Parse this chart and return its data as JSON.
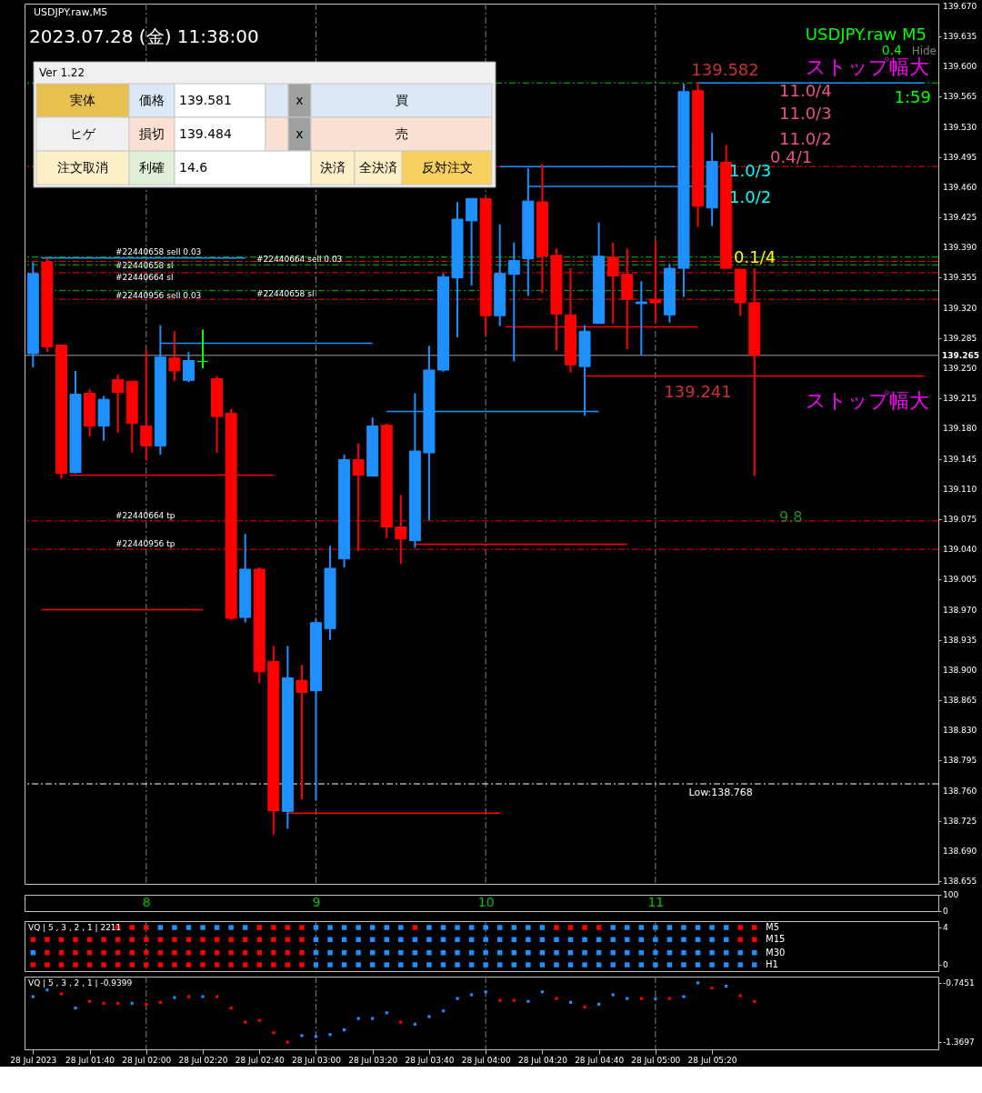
{
  "chart_data": [
    {
      "type": "candlestick",
      "title": "USDJPY.raw,M5",
      "x": [
        "2023-07-28T01:20",
        "2023-07-28T01:25",
        "2023-07-28T01:30",
        "2023-07-28T01:35",
        "2023-07-28T01:40",
        "2023-07-28T01:45",
        "2023-07-28T01:50",
        "2023-07-28T01:55",
        "2023-07-28T02:00",
        "2023-07-28T02:05",
        "2023-07-28T02:10",
        "2023-07-28T02:15",
        "2023-07-28T02:20",
        "2023-07-28T02:25",
        "2023-07-28T02:30",
        "2023-07-28T02:35",
        "2023-07-28T02:40",
        "2023-07-28T02:45",
        "2023-07-28T02:50",
        "2023-07-28T02:55",
        "2023-07-28T03:00",
        "2023-07-28T03:05",
        "2023-07-28T03:10",
        "2023-07-28T03:15",
        "2023-07-28T03:20",
        "2023-07-28T03:25",
        "2023-07-28T03:30",
        "2023-07-28T03:35",
        "2023-07-28T03:40",
        "2023-07-28T03:45",
        "2023-07-28T03:50",
        "2023-07-28T03:55",
        "2023-07-28T04:00",
        "2023-07-28T04:05",
        "2023-07-28T04:10",
        "2023-07-28T04:15",
        "2023-07-28T04:20",
        "2023-07-28T04:25",
        "2023-07-28T04:30",
        "2023-07-28T04:35",
        "2023-07-28T04:40",
        "2023-07-28T04:45",
        "2023-07-28T04:50",
        "2023-07-28T04:55",
        "2023-07-28T05:00",
        "2023-07-28T05:05",
        "2023-07-28T05:10",
        "2023-07-28T05:15",
        "2023-07-28T05:20",
        "2023-07-28T05:25",
        "2023-07-28T05:30",
        "2023-07-28T05:35"
      ],
      "ohlc": [
        [
          139.267,
          139.373,
          139.251,
          139.36
        ],
        [
          139.373,
          139.378,
          139.269,
          139.275
        ],
        [
          139.277,
          139.277,
          139.122,
          139.128
        ],
        [
          139.129,
          139.247,
          139.128,
          139.22
        ],
        [
          139.221,
          139.226,
          139.171,
          139.183
        ],
        [
          139.183,
          139.218,
          139.166,
          139.214
        ],
        [
          139.237,
          139.243,
          139.175,
          139.222
        ],
        [
          139.235,
          139.235,
          139.152,
          139.186
        ],
        [
          139.183,
          139.271,
          139.143,
          139.16
        ],
        [
          139.16,
          139.3,
          139.15,
          139.263
        ],
        [
          139.262,
          139.293,
          139.235,
          139.247
        ],
        [
          139.236,
          139.269,
          139.234,
          139.259
        ],
        [
          139.258,
          139.295,
          139.25,
          139.258
        ],
        [
          139.238,
          139.241,
          139.152,
          139.194
        ],
        [
          139.198,
          139.203,
          138.958,
          138.96
        ],
        [
          138.961,
          139.058,
          138.955,
          139.017
        ],
        [
          139.017,
          139.019,
          138.885,
          138.898
        ],
        [
          138.91,
          138.928,
          138.709,
          138.737
        ],
        [
          138.736,
          138.928,
          138.716,
          138.891
        ],
        [
          138.888,
          138.906,
          138.75,
          138.874
        ],
        [
          138.876,
          138.959,
          138.749,
          138.955
        ],
        [
          138.948,
          139.044,
          138.935,
          139.018
        ],
        [
          139.029,
          139.15,
          139.019,
          139.144
        ],
        [
          139.144,
          139.163,
          139.038,
          139.126
        ],
        [
          139.125,
          139.193,
          139.125,
          139.183
        ],
        [
          139.184,
          139.186,
          139.053,
          139.066
        ],
        [
          139.066,
          139.103,
          139.023,
          139.052
        ],
        [
          139.05,
          139.221,
          139.042,
          139.154
        ],
        [
          139.152,
          139.276,
          139.074,
          139.248
        ],
        [
          139.248,
          139.36,
          139.246,
          139.356
        ],
        [
          139.355,
          139.443,
          139.286,
          139.423
        ],
        [
          139.421,
          139.447,
          139.346,
          139.447
        ],
        [
          139.447,
          139.447,
          139.289,
          139.311
        ],
        [
          139.311,
          139.417,
          139.299,
          139.36
        ],
        [
          139.359,
          139.396,
          139.258,
          139.375
        ],
        [
          139.377,
          139.482,
          139.334,
          139.444
        ],
        [
          139.443,
          139.487,
          139.337,
          139.38
        ],
        [
          139.381,
          139.389,
          139.271,
          139.313
        ],
        [
          139.312,
          139.366,
          139.245,
          139.254
        ],
        [
          139.252,
          139.3,
          139.195,
          139.293
        ],
        [
          139.302,
          139.419,
          139.302,
          139.38
        ],
        [
          139.379,
          139.396,
          139.302,
          139.357
        ],
        [
          139.359,
          139.389,
          139.272,
          139.33
        ],
        [
          139.325,
          139.351,
          139.265,
          139.327
        ],
        [
          139.33,
          139.397,
          139.303,
          139.326
        ],
        [
          139.312,
          139.371,
          139.303,
          139.366
        ],
        [
          139.366,
          139.58,
          139.333,
          139.571
        ],
        [
          139.572,
          139.582,
          139.414,
          139.438
        ],
        [
          139.436,
          139.523,
          139.415,
          139.49
        ],
        [
          139.489,
          139.509,
          139.366,
          139.366
        ],
        [
          139.365,
          139.365,
          139.311,
          139.326
        ],
        [
          139.326,
          139.366,
          139.125,
          139.265
        ]
      ],
      "colors": [
        "#1e90ff",
        "#ff0000",
        "#ff0000",
        "#1e90ff",
        "#ff0000",
        "#1e90ff",
        "#ff0000",
        "#ff0000",
        "#ff0000",
        "#1e90ff",
        "#ff0000",
        "#1e90ff",
        "#00ff00",
        "#ff0000",
        "#ff0000",
        "#1e90ff",
        "#ff0000",
        "#ff0000",
        "#1e90ff",
        "#ff0000",
        "#1e90ff",
        "#1e90ff",
        "#1e90ff",
        "#ff0000",
        "#1e90ff",
        "#ff0000",
        "#ff0000",
        "#1e90ff",
        "#1e90ff",
        "#1e90ff",
        "#1e90ff",
        "#1e90ff",
        "#ff0000",
        "#1e90ff",
        "#1e90ff",
        "#1e90ff",
        "#ff0000",
        "#ff0000",
        "#ff0000",
        "#1e90ff",
        "#1e90ff",
        "#ff0000",
        "#ff0000",
        "#1e90ff",
        "#ff0000",
        "#1e90ff",
        "#1e90ff",
        "#ff0000",
        "#1e90ff",
        "#ff0000",
        "#ff0000",
        "#ff0000"
      ],
      "xlim": [
        "2023-07-28T01:17",
        "2023-07-28T06:40"
      ],
      "ylim": [
        138.652,
        139.673
      ],
      "yticks": [
        138.655,
        {
          "value": 138.69,
          "label": "138.690"
        },
        138.725,
        {
          "value": 138.76,
          "label": "138.760"
        },
        138.795,
        {
          "value": 138.83,
          "label": "138.830"
        },
        138.865,
        {
          "value": 138.9,
          "label": "138.900"
        },
        138.935,
        {
          "value": 138.97,
          "label": "138.970"
        },
        139.005,
        {
          "value": 139.04,
          "label": "139.040"
        },
        139.075,
        {
          "value": 139.11,
          "label": "139.110"
        },
        139.145,
        {
          "value": 139.18,
          "label": "139.180"
        },
        139.215,
        {
          "value": 139.25,
          "label": "139.250"
        },
        139.285,
        {
          "value": 139.32,
          "label": "139.320"
        },
        139.355,
        {
          "value": 139.39,
          "label": "139.390"
        },
        139.425,
        {
          "value": 139.46,
          "label": "139.460"
        },
        139.495,
        {
          "value": 139.53,
          "label": "139.530"
        },
        139.565,
        {
          "value": 139.6,
          "label": "139.600"
        },
        139.635,
        {
          "value": 139.67,
          "label": "139.670"
        }
      ],
      "tick_labels": "y",
      "series": [
        {
          "type": "line",
          "color": "#1e90ff",
          "x": [
            "2023-07-28T05:15",
            "2023-07-28T06:35"
          ],
          "values": [
            139.581,
            139.581
          ]
        },
        {
          "type": "line",
          "color": "#1e90ff",
          "x": [
            "2023-07-28T04:05",
            "2023-07-28T05:07"
          ],
          "values": [
            139.484,
            139.484
          ]
        },
        {
          "type": "line",
          "color": "#1e90ff",
          "x": [
            "2023-07-28T04:15",
            "2023-07-28T05:22"
          ],
          "values": [
            139.461,
            139.461
          ]
        },
        {
          "type": "line",
          "color": "#1e90ff",
          "x": [
            "2023-07-28T01:23",
            "2023-07-28T02:35"
          ],
          "values": [
            139.378,
            139.378
          ]
        },
        {
          "type": "line",
          "color": "#1e90ff",
          "x": [
            "2023-07-28T02:05",
            "2023-07-28T03:20"
          ],
          "values": [
            139.279,
            139.279
          ]
        },
        {
          "type": "line",
          "color": "#1e90ff",
          "x": [
            "2023-07-28T03:25",
            "2023-07-28T04:40"
          ],
          "values": [
            139.2,
            139.2
          ]
        },
        {
          "type": "line",
          "color": "#ff0000",
          "x": [
            "2023-07-28T04:07",
            "2023-07-28T05:15"
          ],
          "values": [
            139.298,
            139.298
          ]
        },
        {
          "type": "line",
          "color": "#ff0000",
          "x": [
            "2023-07-28T01:33",
            "2023-07-28T02:45"
          ],
          "values": [
            139.126,
            139.126
          ]
        },
        {
          "type": "line",
          "color": "#ff0000",
          "x": [
            "2023-07-28T03:35",
            "2023-07-28T04:50"
          ],
          "values": [
            139.046,
            139.046
          ]
        },
        {
          "type": "line",
          "color": "#ff0000",
          "x": [
            "2023-07-28T01:23",
            "2023-07-28T02:20"
          ],
          "values": [
            138.97,
            138.97
          ]
        },
        {
          "type": "line",
          "color": "#ff0000",
          "x": [
            "2023-07-28T02:50",
            "2023-07-28T04:05"
          ],
          "values": [
            138.734,
            138.734
          ]
        },
        {
          "type": "line",
          "color": "#ff0000",
          "x": [
            "2023-07-28T04:35",
            "2023-07-28T06:35"
          ],
          "values": [
            139.241,
            139.241
          ]
        }
      ],
      "ref_lines": [
        {
          "axis": "x",
          "value": "2023-07-28T02:00",
          "color": "#808080",
          "line_style": "dashed"
        },
        {
          "axis": "x",
          "value": "2023-07-28T03:00",
          "color": "#808080",
          "line_style": "dashed"
        },
        {
          "axis": "x",
          "value": "2023-07-28T04:00",
          "color": "#808080",
          "line_style": "dashed"
        },
        {
          "axis": "x",
          "value": "2023-07-28T05:00",
          "color": "#808080",
          "line_style": "dashed"
        },
        {
          "axis": "y",
          "value": 139.581,
          "color": "#00c000",
          "line_style": "dashed"
        },
        {
          "axis": "y",
          "value": 139.484,
          "color": "#ff0000",
          "line_style": "dashed"
        },
        {
          "axis": "y",
          "value": 139.379,
          "color": "#00c000",
          "line_style": "dashed",
          "label": "#22440658 sell 0.03"
        },
        {
          "axis": "y",
          "value": 139.374,
          "color": "#ff0000",
          "line_style": "dashed",
          "label": "#22440658 sl"
        },
        {
          "axis": "y",
          "value": 139.37,
          "color": "#00c000",
          "line_style": "dashed",
          "label": "#22440664 sell 0.03"
        },
        {
          "axis": "y",
          "value": 139.361,
          "color": "#ff0000",
          "line_style": "dashed",
          "label": "#22440664 sl"
        },
        {
          "axis": "y",
          "value": 139.34,
          "color": "#00c000",
          "line_style": "dashed",
          "label": "#22440956 sell 0.03"
        },
        {
          "axis": "y",
          "value": 139.33,
          "color": "#ff0000",
          "line_style": "dashed",
          "label": "#22440658 sl"
        },
        {
          "axis": "y",
          "value": 139.073,
          "color": "#ff0000",
          "line_style": "dashed",
          "label": "#22440664 tp"
        },
        {
          "axis": "y",
          "value": 139.04,
          "color": "#ff0000",
          "line_style": "dashed",
          "label": "#22440956 tp"
        },
        {
          "axis": "y",
          "value": 138.768,
          "color": "#ffffff",
          "line_style": "dashed"
        },
        {
          "axis": "y",
          "value": 139.265,
          "color": "#a0a0a0",
          "line_style": "solid",
          "label": "139.265"
        }
      ],
      "annotations": [
        "2023.07.28 (金) 11:38:00",
        "USDJPY.raw  M5",
        "Hide",
        "ストップ幅大",
        "11.0/4",
        "11.0/3",
        "11.0/2",
        "0.4/1",
        "1.0/3",
        "1.0/2",
        "0.1/4",
        "1:59",
        "0.4",
        "ストップ幅大",
        "9.8",
        {
          "text": "139.582",
          "x": "2023-07-28T05:15",
          "y": 139.582
        },
        {
          "text": "139.241",
          "x": "2023-07-28T05:15",
          "y": 139.241
        },
        {
          "text": "Low:138.768",
          "x": "2023-07-28T05:15",
          "y": 138.768
        }
      ]
    },
    {
      "type": "other",
      "title": "Ver 1.22",
      "annotations": [
        "実体",
        "価格",
        "139.581",
        "x",
        "買",
        "ヒゲ",
        "損切",
        "139.484",
        "x",
        "売",
        "注文取消",
        "利確",
        "14.6",
        "決済",
        "全決済",
        "反対注文"
      ]
    },
    {
      "type": "line",
      "xlim": [
        "2023-07-28T01:17",
        "2023-07-28T06:40"
      ],
      "ylim": [
        0,
        100
      ],
      "yticks": [
        0,
        100
      ],
      "xticks": [
        {
          "value": "2023-07-28T02:00",
          "label": "8"
        },
        {
          "value": "2023-07-28T03:00",
          "label": "9"
        },
        {
          "value": "2023-07-28T04:00",
          "label": "10"
        },
        {
          "value": "2023-07-28T05:00",
          "label": "11"
        }
      ]
    },
    {
      "type": "scatter",
      "marker": "square",
      "tick_labels": "y",
      "x": [
        "2023-07-28T01:20",
        "2023-07-28T01:25",
        "2023-07-28T01:30",
        "2023-07-28T01:35",
        "2023-07-28T01:40",
        "2023-07-28T01:45",
        "2023-07-28T01:50",
        "2023-07-28T01:55",
        "2023-07-28T02:00",
        "2023-07-28T02:05",
        "2023-07-28T02:10",
        "2023-07-28T02:15",
        "2023-07-28T02:20",
        "2023-07-28T02:25",
        "2023-07-28T02:30",
        "2023-07-28T02:35",
        "2023-07-28T02:40",
        "2023-07-28T02:45",
        "2023-07-28T02:50",
        "2023-07-28T02:55",
        "2023-07-28T03:00",
        "2023-07-28T03:05",
        "2023-07-28T03:10",
        "2023-07-28T03:15",
        "2023-07-28T03:20",
        "2023-07-28T03:25",
        "2023-07-28T03:30",
        "2023-07-28T03:35",
        "2023-07-28T03:40",
        "2023-07-28T03:45",
        "2023-07-28T03:50",
        "2023-07-28T03:55",
        "2023-07-28T04:00",
        "2023-07-28T04:05",
        "2023-07-28T04:10",
        "2023-07-28T04:15",
        "2023-07-28T04:20",
        "2023-07-28T04:25",
        "2023-07-28T04:30",
        "2023-07-28T04:35",
        "2023-07-28T04:40",
        "2023-07-28T04:45",
        "2023-07-28T04:50",
        "2023-07-28T04:55",
        "2023-07-28T05:00",
        "2023-07-28T05:05",
        "2023-07-28T05:10",
        "2023-07-28T05:15",
        "2023-07-28T05:20",
        "2023-07-28T05:25",
        "2023-07-28T05:30",
        "2023-07-28T05:35"
      ],
      "xlim": [
        "2023-07-28T01:17",
        "2023-07-28T06:40"
      ],
      "ylim": [
        -0.68,
        4.68
      ],
      "yticks": [
        0,
        4
      ],
      "series": [
        {
          "name": "M5",
          "values": [
            null,
            null,
            null,
            null,
            null,
            null,
            4,
            4,
            4,
            4,
            4,
            4,
            4,
            4,
            4,
            4,
            4,
            4,
            4,
            4,
            4,
            4,
            4,
            4,
            4,
            4,
            4,
            4,
            4,
            4,
            4,
            4,
            4,
            4,
            4,
            4,
            4,
            4,
            4,
            4,
            4,
            4,
            4,
            4,
            4,
            4,
            4,
            4,
            4,
            4,
            4,
            4
          ],
          "colors": [
            null,
            null,
            null,
            null,
            null,
            null,
            "#ff0000",
            "#ff0000",
            "#ff0000",
            "#1e90ff",
            "#1e90ff",
            "#1e90ff",
            "#1e90ff",
            "#1e90ff",
            "#1e90ff",
            "#1e90ff",
            "#ff0000",
            "#ff0000",
            "#ff0000",
            "#ff0000",
            "#1e90ff",
            "#1e90ff",
            "#1e90ff",
            "#1e90ff",
            "#1e90ff",
            "#1e90ff",
            "#1e90ff",
            "#ff0000",
            "#1e90ff",
            "#1e90ff",
            "#1e90ff",
            "#1e90ff",
            "#1e90ff",
            "#1e90ff",
            "#1e90ff",
            "#1e90ff",
            "#1e90ff",
            "#ff0000",
            "#ff0000",
            "#ff0000",
            "#ff0000",
            "#1e90ff",
            "#1e90ff",
            "#1e90ff",
            "#1e90ff",
            "#1e90ff",
            "#1e90ff",
            "#1e90ff",
            "#1e90ff",
            "#1e90ff",
            "#ff0000",
            "#ff0000"
          ]
        },
        {
          "name": "M15",
          "values": [
            2.7,
            2.7,
            2.7,
            2.7,
            2.7,
            2.7,
            2.7,
            2.7,
            2.7,
            2.7,
            2.7,
            2.7,
            2.7,
            2.7,
            2.7,
            2.7,
            2.7,
            2.7,
            2.7,
            2.7,
            2.7,
            2.7,
            2.7,
            2.7,
            2.7,
            2.7,
            2.7,
            2.7,
            2.7,
            2.7,
            2.7,
            2.7,
            2.7,
            2.7,
            2.7,
            2.7,
            2.7,
            2.7,
            2.7,
            2.7,
            2.7,
            2.7,
            2.7,
            2.7,
            2.7,
            2.7,
            2.7,
            2.7,
            2.7,
            2.7,
            2.7,
            2.7
          ],
          "colors": [
            "#ff0000",
            "#ff0000",
            "#ff0000",
            "#ff0000",
            "#ff0000",
            "#ff0000",
            "#ff0000",
            "#ff0000",
            "#ff0000",
            "#ff0000",
            "#ff0000",
            "#ff0000",
            "#ff0000",
            "#ff0000",
            "#ff0000",
            "#ff0000",
            "#ff0000",
            "#ff0000",
            "#ff0000",
            "#ff0000",
            "#1e90ff",
            "#1e90ff",
            "#1e90ff",
            "#1e90ff",
            "#1e90ff",
            "#1e90ff",
            "#1e90ff",
            "#1e90ff",
            "#1e90ff",
            "#1e90ff",
            "#1e90ff",
            "#1e90ff",
            "#1e90ff",
            "#1e90ff",
            "#1e90ff",
            "#1e90ff",
            "#1e90ff",
            "#1e90ff",
            "#1e90ff",
            "#1e90ff",
            "#1e90ff",
            "#1e90ff",
            "#1e90ff",
            "#1e90ff",
            "#1e90ff",
            "#1e90ff",
            "#1e90ff",
            "#1e90ff",
            "#1e90ff",
            "#1e90ff",
            "#ff0000",
            "#ff0000"
          ]
        },
        {
          "name": "M30",
          "values": [
            1.3,
            1.3,
            1.3,
            1.3,
            1.3,
            1.3,
            1.3,
            1.3,
            1.3,
            1.3,
            1.3,
            1.3,
            1.3,
            1.3,
            1.3,
            1.3,
            1.3,
            1.3,
            1.3,
            1.3,
            1.3,
            1.3,
            1.3,
            1.3,
            1.3,
            1.3,
            1.3,
            1.3,
            1.3,
            1.3,
            1.3,
            1.3,
            1.3,
            1.3,
            1.3,
            1.3,
            1.3,
            1.3,
            1.3,
            1.3,
            1.3,
            1.3,
            1.3,
            1.3,
            1.3,
            1.3,
            1.3,
            1.3,
            1.3,
            1.3,
            1.3,
            1.3
          ],
          "colors": [
            "#1e90ff",
            "#ff0000",
            "#ff0000",
            "#ff0000",
            "#ff0000",
            "#ff0000",
            "#ff0000",
            "#ff0000",
            "#ff0000",
            "#ff0000",
            "#ff0000",
            "#ff0000",
            "#ff0000",
            "#ff0000",
            "#ff0000",
            "#ff0000",
            "#ff0000",
            "#ff0000",
            "#ff0000",
            "#ff0000",
            "#1e90ff",
            "#1e90ff",
            "#1e90ff",
            "#1e90ff",
            "#1e90ff",
            "#1e90ff",
            "#1e90ff",
            "#1e90ff",
            "#1e90ff",
            "#1e90ff",
            "#1e90ff",
            "#1e90ff",
            "#1e90ff",
            "#1e90ff",
            "#1e90ff",
            "#1e90ff",
            "#1e90ff",
            "#1e90ff",
            "#1e90ff",
            "#1e90ff",
            "#1e90ff",
            "#1e90ff",
            "#1e90ff",
            "#1e90ff",
            "#1e90ff",
            "#1e90ff",
            "#1e90ff",
            "#1e90ff",
            "#1e90ff",
            "#1e90ff",
            "#1e90ff",
            "#1e90ff"
          ]
        },
        {
          "name": "H1",
          "values": [
            0,
            0,
            0,
            0,
            0,
            0,
            0,
            0,
            0,
            0,
            0,
            0,
            0,
            0,
            0,
            0,
            0,
            0,
            0,
            0,
            0,
            0,
            0,
            0,
            0,
            0,
            0,
            0,
            0,
            0,
            0,
            0,
            0,
            0,
            0,
            0,
            0,
            0,
            0,
            0,
            0,
            0,
            0,
            0,
            0,
            0,
            0,
            0,
            0,
            0,
            0,
            0
          ],
          "colors": [
            "#ff0000",
            "#ff0000",
            "#ff0000",
            "#ff0000",
            "#ff0000",
            "#ff0000",
            "#ff0000",
            "#ff0000",
            "#ff0000",
            "#ff0000",
            "#ff0000",
            "#ff0000",
            "#ff0000",
            "#ff0000",
            "#ff0000",
            "#ff0000",
            "#ff0000",
            "#ff0000",
            "#ff0000",
            "#ff0000",
            "#1e90ff",
            "#1e90ff",
            "#1e90ff",
            "#1e90ff",
            "#1e90ff",
            "#1e90ff",
            "#1e90ff",
            "#1e90ff",
            "#1e90ff",
            "#1e90ff",
            "#1e90ff",
            "#1e90ff",
            "#1e90ff",
            "#1e90ff",
            "#1e90ff",
            "#1e90ff",
            "#1e90ff",
            "#1e90ff",
            "#1e90ff",
            "#1e90ff",
            "#1e90ff",
            "#1e90ff",
            "#1e90ff",
            "#1e90ff",
            "#1e90ff",
            "#1e90ff",
            "#1e90ff",
            "#1e90ff",
            "#1e90ff",
            "#1e90ff",
            "#1e90ff",
            "#1e90ff"
          ]
        }
      ],
      "ref_lines": [
        {
          "axis": "x",
          "value": "2023-07-28T02:00",
          "color": "#808080",
          "line_style": "dashed"
        },
        {
          "axis": "x",
          "value": "2023-07-28T03:00",
          "color": "#808080",
          "line_style": "dashed"
        },
        {
          "axis": "x",
          "value": "2023-07-28T04:00",
          "color": "#808080",
          "line_style": "dashed"
        },
        {
          "axis": "x",
          "value": "2023-07-28T05:00",
          "color": "#808080",
          "line_style": "dashed"
        }
      ],
      "annotations": [
        "VQ | 5 , 3 , 2 , 1 | 2211"
      ]
    },
    {
      "type": "scatter",
      "marker": "square",
      "x": [
        "2023-07-28T01:20",
        "2023-07-28T01:25",
        "2023-07-28T01:30",
        "2023-07-28T01:35",
        "2023-07-28T01:40",
        "2023-07-28T01:45",
        "2023-07-28T01:50",
        "2023-07-28T01:55",
        "2023-07-28T02:00",
        "2023-07-28T02:05",
        "2023-07-28T02:10",
        "2023-07-28T02:15",
        "2023-07-28T02:20",
        "2023-07-28T02:25",
        "2023-07-28T02:30",
        "2023-07-28T02:35",
        "2023-07-28T02:40",
        "2023-07-28T02:45",
        "2023-07-28T02:50",
        "2023-07-28T02:55",
        "2023-07-28T03:00",
        "2023-07-28T03:05",
        "2023-07-28T03:10",
        "2023-07-28T03:15",
        "2023-07-28T03:20",
        "2023-07-28T03:25",
        "2023-07-28T03:30",
        "2023-07-28T03:35",
        "2023-07-28T03:40",
        "2023-07-28T03:45",
        "2023-07-28T03:50",
        "2023-07-28T03:55",
        "2023-07-28T04:00",
        "2023-07-28T04:05",
        "2023-07-28T04:10",
        "2023-07-28T04:15",
        "2023-07-28T04:20",
        "2023-07-28T04:25",
        "2023-07-28T04:30",
        "2023-07-28T04:35",
        "2023-07-28T04:40",
        "2023-07-28T04:45",
        "2023-07-28T04:50",
        "2023-07-28T04:55",
        "2023-07-28T05:00",
        "2023-07-28T05:05",
        "2023-07-28T05:10",
        "2023-07-28T05:15",
        "2023-07-28T05:20",
        "2023-07-28T05:25",
        "2023-07-28T05:30",
        "2023-07-28T05:35"
      ],
      "values": [
        -0.89,
        -0.82,
        -0.86,
        -1.01,
        -0.94,
        -0.96,
        -0.96,
        -0.96,
        -0.97,
        -0.95,
        -0.9,
        -0.89,
        -0.89,
        -0.89,
        -1.01,
        -1.16,
        -1.14,
        -1.27,
        -1.3697,
        -1.3,
        -1.31,
        -1.29,
        -1.24,
        -1.12,
        -1.12,
        -1.06,
        -1.16,
        -1.18,
        -1.1,
        -1.04,
        -0.91,
        -0.87,
        -0.84,
        -0.93,
        -0.93,
        -0.94,
        -0.84,
        -0.91,
        -0.95,
        -1.0,
        -0.97,
        -0.87,
        -0.91,
        -0.91,
        -0.91,
        -0.91,
        -0.89,
        -0.7451,
        -0.8,
        -0.78,
        -0.88,
        -0.9399
      ],
      "colors": [
        "#1e90ff",
        "#1e90ff",
        "#ff0000",
        "#1e90ff",
        "#ff0000",
        "#ff0000",
        "#ff0000",
        "#1e90ff",
        "#ff0000",
        "#ff0000",
        "#1e90ff",
        "#ff0000",
        "#1e90ff",
        "#ff0000",
        "#ff0000",
        "#ff0000",
        "#ff0000",
        "#ff0000",
        "#ff0000",
        "#1e90ff",
        "#1e90ff",
        "#1e90ff",
        "#1e90ff",
        "#1e90ff",
        "#1e90ff",
        "#1e90ff",
        "#ff0000",
        "#1e90ff",
        "#1e90ff",
        "#1e90ff",
        "#1e90ff",
        "#1e90ff",
        "#1e90ff",
        "#ff0000",
        "#ff0000",
        "#1e90ff",
        "#1e90ff",
        "#ff0000",
        "#1e90ff",
        "#ff0000",
        "#1e90ff",
        "#1e90ff",
        "#1e90ff",
        "#ff0000",
        "#1e90ff",
        "#ff0000",
        "#1e90ff",
        "#1e90ff",
        "#ff0000",
        "#1e90ff",
        "#ff0000",
        "#ff0000"
      ],
      "xlim": [
        "2023-07-28T01:17",
        "2023-07-28T06:40"
      ],
      "ylim": [
        -1.445,
        -0.679
      ],
      "yticks": [
        -1.3697,
        -0.7451
      ],
      "xticks": [
        {
          "value": "2023-07-28T01:20",
          "label": "28 Jul 2023"
        },
        {
          "value": "2023-07-28T01:40",
          "label": "28 Jul 01:40"
        },
        {
          "value": "2023-07-28T02:00",
          "label": "28 Jul 02:00"
        },
        {
          "value": "2023-07-28T02:20",
          "label": "28 Jul 02:20"
        },
        {
          "value": "2023-07-28T02:40",
          "label": "28 Jul 02:40"
        },
        {
          "value": "2023-07-28T03:00",
          "label": "28 Jul 03:00"
        },
        {
          "value": "2023-07-28T03:20",
          "label": "28 Jul 03:20"
        },
        {
          "value": "2023-07-28T03:40",
          "label": "28 Jul 03:40"
        },
        {
          "value": "2023-07-28T04:00",
          "label": "28 Jul 04:00"
        },
        {
          "value": "2023-07-28T04:20",
          "label": "28 Jul 04:20"
        },
        {
          "value": "2023-07-28T04:40",
          "label": "28 Jul 04:40"
        },
        {
          "value": "2023-07-28T05:00",
          "label": "28 Jul 05:00"
        },
        {
          "value": "2023-07-28T05:20",
          "label": "28 Jul 05:20"
        }
      ],
      "ref_lines": [
        {
          "axis": "x",
          "value": "2023-07-28T02:00",
          "color": "#808080",
          "line_style": "dashed"
        },
        {
          "axis": "x",
          "value": "2023-07-28T03:00",
          "color": "#808080",
          "line_style": "dashed"
        },
        {
          "axis": "x",
          "value": "2023-07-28T04:00",
          "color": "#808080",
          "line_style": "dashed"
        },
        {
          "axis": "x",
          "value": "2023-07-28T05:00",
          "color": "#808080",
          "line_style": "dashed"
        }
      ],
      "annotations": [
        "VQ | 5 , 3 , 2 , 1 | -0.9399"
      ]
    }
  ]
}
